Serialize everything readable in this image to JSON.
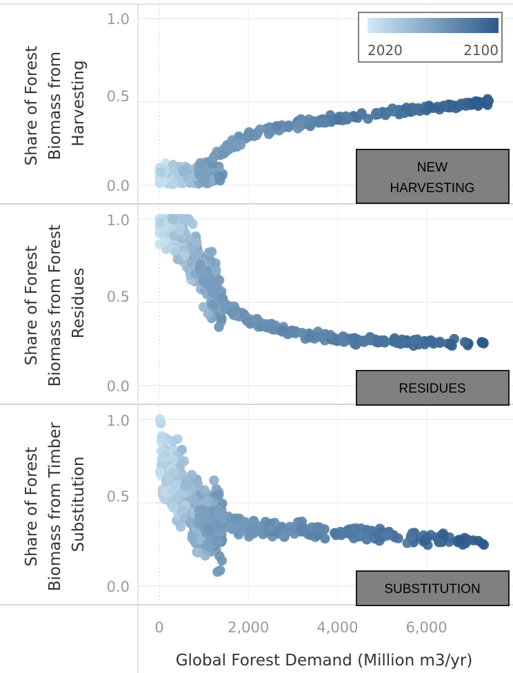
{
  "legend": {
    "min_label": "2020",
    "max_label": "2100",
    "min_color": "#d1e9f7",
    "max_color": "#2b5a8a"
  },
  "x_axis": {
    "label": "Global Forest Demand (Million m3/yr)",
    "ticks": [
      "0",
      "2,000",
      "4,000",
      "6,000"
    ]
  },
  "panels": [
    {
      "ylabel_lines": [
        "Share of Forest",
        "Biomass from",
        "Harvesting"
      ],
      "yticks": [
        "1.0",
        "0.5",
        "0.0"
      ],
      "tag_lines": [
        "NEW",
        "HARVESTING"
      ]
    },
    {
      "ylabel_lines": [
        "Share of Forest",
        "Biomass from Forest",
        "Residues"
      ],
      "yticks": [
        "1.0",
        "0.5",
        "0.0"
      ],
      "tag_lines": [
        "RESIDUES"
      ]
    },
    {
      "ylabel_lines": [
        "Share of Forest",
        "Biomass from Timber",
        "Substitution"
      ],
      "yticks": [
        "1.0",
        "0.5",
        "0.0"
      ],
      "tag_lines": [
        "SUBSTITUTION"
      ]
    }
  ],
  "chart_data": [
    {
      "type": "scatter",
      "title": "",
      "xlabel": "Global Forest Demand (Million m3/yr)",
      "ylabel": "Share of Forest Biomass from Harvesting",
      "xlim": [
        -1000,
        7700
      ],
      "ylim": [
        0,
        1.0
      ],
      "color_scale": "year 2020-2100",
      "trend_x": [
        0,
        500,
        1000,
        1500,
        2000,
        3000,
        4000,
        5000,
        6000,
        7400
      ],
      "trend_y": [
        0.02,
        0.05,
        0.1,
        0.22,
        0.3,
        0.36,
        0.4,
        0.43,
        0.46,
        0.5
      ]
    },
    {
      "type": "scatter",
      "title": "",
      "xlabel": "Global Forest Demand (Million m3/yr)",
      "ylabel": "Share of Forest Biomass from Forest Residues",
      "xlim": [
        -1000,
        7700
      ],
      "ylim": [
        0,
        1.0
      ],
      "color_scale": "year 2020-2100",
      "trend_x": [
        250,
        500,
        750,
        1000,
        1500,
        2000,
        3000,
        4000,
        5000,
        6000,
        7400
      ],
      "trend_y": [
        1.0,
        0.92,
        0.78,
        0.66,
        0.48,
        0.39,
        0.32,
        0.28,
        0.27,
        0.26,
        0.25
      ]
    },
    {
      "type": "scatter",
      "title": "",
      "xlabel": "Global Forest Demand (Million m3/yr)",
      "ylabel": "Share of Forest Biomass from Timber Substitution",
      "xlim": [
        -1000,
        7700
      ],
      "ylim": [
        0,
        1.0
      ],
      "color_scale": "year 2020-2100",
      "trend_x": [
        0,
        500,
        1000,
        1500,
        2000,
        3000,
        4000,
        5000,
        6000,
        7400
      ],
      "trend_y": [
        0.8,
        0.55,
        0.4,
        0.38,
        0.35,
        0.34,
        0.33,
        0.31,
        0.29,
        0.26
      ]
    }
  ]
}
